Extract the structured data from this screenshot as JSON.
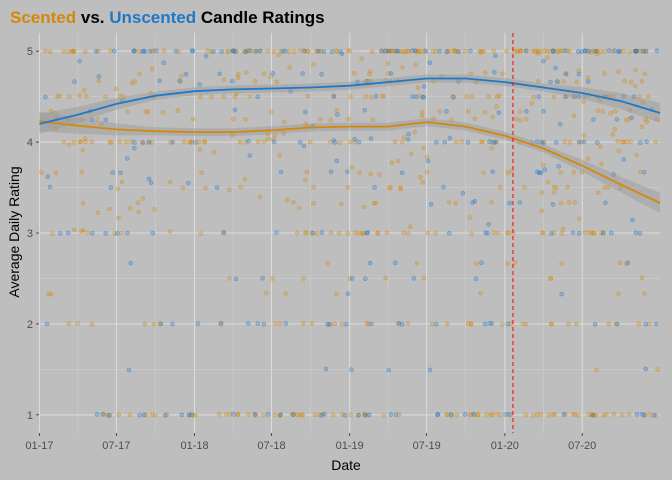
{
  "chart_data": {
    "type": "scatter",
    "title_parts": [
      {
        "text": "Scented",
        "color": "#d4880a"
      },
      {
        "text": " vs. ",
        "color": "#000000"
      },
      {
        "text": "Unscented",
        "color": "#1f78c8"
      },
      {
        "text": " Candle Ratings",
        "color": "#000000"
      }
    ],
    "xlabel": "Date",
    "ylabel": "Average Daily Rating",
    "x_range": [
      "2016-12-31",
      "2020-12-31"
    ],
    "x_ticks": [
      {
        "date": "2017-01-01",
        "label": "01-17"
      },
      {
        "date": "2017-07-01",
        "label": "07-17"
      },
      {
        "date": "2018-01-01",
        "label": "01-18"
      },
      {
        "date": "2018-07-01",
        "label": "07-18"
      },
      {
        "date": "2019-01-01",
        "label": "01-19"
      },
      {
        "date": "2019-07-01",
        "label": "07-19"
      },
      {
        "date": "2020-01-01",
        "label": "01-20"
      },
      {
        "date": "2020-07-01",
        "label": "07-20"
      }
    ],
    "y_range": [
      0.8,
      5.2
    ],
    "y_ticks": [
      1,
      2,
      3,
      4,
      5
    ],
    "grid": true,
    "reference_line": {
      "date": "2020-01-20",
      "color": "#ff0000",
      "style": "dashed"
    },
    "series": [
      {
        "name": "Scented",
        "color": "#d4880a",
        "trend": [
          {
            "x": "2017-01-01",
            "y": 4.23
          },
          {
            "x": "2017-04-01",
            "y": 4.18
          },
          {
            "x": "2017-07-01",
            "y": 4.14
          },
          {
            "x": "2017-10-01",
            "y": 4.12
          },
          {
            "x": "2018-01-01",
            "y": 4.11
          },
          {
            "x": "2018-04-01",
            "y": 4.11
          },
          {
            "x": "2018-07-01",
            "y": 4.13
          },
          {
            "x": "2018-10-01",
            "y": 4.16
          },
          {
            "x": "2019-01-01",
            "y": 4.17
          },
          {
            "x": "2019-04-01",
            "y": 4.17
          },
          {
            "x": "2019-07-01",
            "y": 4.22
          },
          {
            "x": "2019-10-01",
            "y": 4.17
          },
          {
            "x": "2020-01-01",
            "y": 4.07
          },
          {
            "x": "2020-04-01",
            "y": 3.93
          },
          {
            "x": "2020-07-01",
            "y": 3.74
          },
          {
            "x": "2020-10-01",
            "y": 3.53
          },
          {
            "x": "2020-12-31",
            "y": 3.33
          }
        ]
      },
      {
        "name": "Unscented",
        "color": "#1f78c8",
        "trend": [
          {
            "x": "2017-01-01",
            "y": 4.2
          },
          {
            "x": "2017-04-01",
            "y": 4.3
          },
          {
            "x": "2017-07-01",
            "y": 4.42
          },
          {
            "x": "2017-10-01",
            "y": 4.51
          },
          {
            "x": "2018-01-01",
            "y": 4.56
          },
          {
            "x": "2018-04-01",
            "y": 4.58
          },
          {
            "x": "2018-07-01",
            "y": 4.59
          },
          {
            "x": "2018-10-01",
            "y": 4.6
          },
          {
            "x": "2019-01-01",
            "y": 4.62
          },
          {
            "x": "2019-04-01",
            "y": 4.66
          },
          {
            "x": "2019-07-01",
            "y": 4.7
          },
          {
            "x": "2019-10-01",
            "y": 4.7
          },
          {
            "x": "2020-01-01",
            "y": 4.66
          },
          {
            "x": "2020-04-01",
            "y": 4.6
          },
          {
            "x": "2020-07-01",
            "y": 4.54
          },
          {
            "x": "2020-10-01",
            "y": 4.45
          },
          {
            "x": "2020-12-31",
            "y": 4.32
          }
        ]
      }
    ]
  }
}
